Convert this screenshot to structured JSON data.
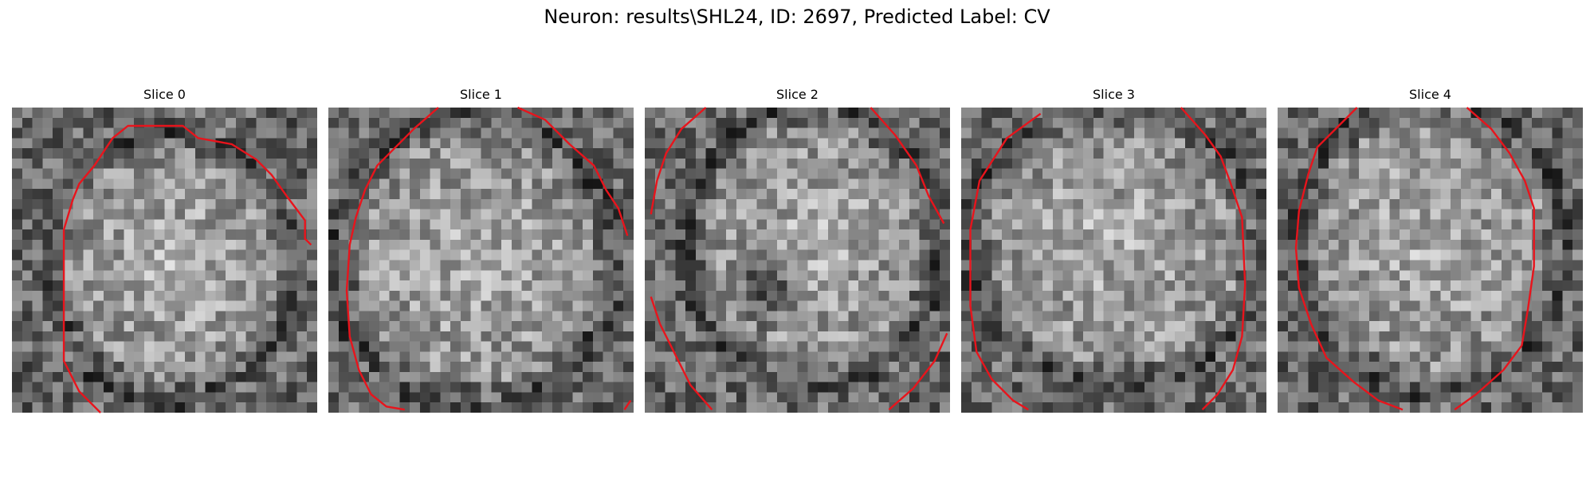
{
  "figure": {
    "title": "Neuron: results\\SHL24, ID: 2697, Predicted Label: CV"
  },
  "colors": {
    "contour": "#e8141c",
    "background": "#ffffff"
  },
  "slices": [
    {
      "title": "Slice 0",
      "contour": [
        [
          0.29,
          1.0
        ],
        [
          0.22,
          0.93
        ],
        [
          0.17,
          0.83
        ],
        [
          0.17,
          0.4
        ],
        [
          0.2,
          0.3
        ],
        [
          0.22,
          0.25
        ],
        [
          0.27,
          0.19
        ],
        [
          0.33,
          0.1
        ],
        [
          0.38,
          0.06
        ],
        [
          0.56,
          0.06
        ],
        [
          0.61,
          0.1
        ],
        [
          0.72,
          0.12
        ],
        [
          0.8,
          0.17
        ],
        [
          0.85,
          0.22
        ],
        [
          0.9,
          0.29
        ],
        [
          0.96,
          0.37
        ],
        [
          0.96,
          0.43
        ],
        [
          0.98,
          0.45
        ]
      ]
    },
    {
      "title": "Slice 1",
      "contour": [
        [
          0.36,
          0.0
        ],
        [
          0.28,
          0.07
        ],
        [
          0.22,
          0.13
        ],
        [
          0.16,
          0.19
        ],
        [
          0.12,
          0.27
        ],
        [
          0.09,
          0.36
        ],
        [
          0.07,
          0.45
        ],
        [
          0.06,
          0.6
        ],
        [
          0.07,
          0.75
        ],
        [
          0.1,
          0.86
        ],
        [
          0.14,
          0.94
        ],
        [
          0.19,
          0.98
        ],
        [
          0.25,
          0.99
        ]
      ],
      "contour2": [
        [
          0.62,
          0.0
        ],
        [
          0.71,
          0.04
        ],
        [
          0.79,
          0.12
        ],
        [
          0.87,
          0.19
        ],
        [
          0.91,
          0.27
        ],
        [
          0.95,
          0.33
        ],
        [
          0.98,
          0.42
        ]
      ],
      "contour3": [
        [
          0.97,
          0.99
        ],
        [
          0.99,
          0.96
        ]
      ]
    },
    {
      "title": "Slice 2",
      "contour": [
        [
          0.2,
          0.0
        ],
        [
          0.12,
          0.07
        ],
        [
          0.07,
          0.15
        ],
        [
          0.04,
          0.24
        ],
        [
          0.02,
          0.35
        ]
      ],
      "contour2": [
        [
          0.74,
          0.0
        ],
        [
          0.82,
          0.09
        ],
        [
          0.89,
          0.19
        ],
        [
          0.93,
          0.29
        ],
        [
          0.98,
          0.38
        ]
      ],
      "contour3": [
        [
          0.02,
          0.62
        ],
        [
          0.05,
          0.71
        ],
        [
          0.1,
          0.81
        ],
        [
          0.15,
          0.91
        ],
        [
          0.22,
          0.99
        ]
      ],
      "contour4": [
        [
          0.8,
          0.99
        ],
        [
          0.88,
          0.92
        ],
        [
          0.95,
          0.83
        ],
        [
          0.99,
          0.74
        ]
      ]
    },
    {
      "title": "Slice 3",
      "contour": [
        [
          0.26,
          0.02
        ],
        [
          0.15,
          0.1
        ],
        [
          0.06,
          0.24
        ],
        [
          0.03,
          0.4
        ],
        [
          0.03,
          0.65
        ],
        [
          0.05,
          0.8
        ],
        [
          0.1,
          0.89
        ],
        [
          0.17,
          0.96
        ],
        [
          0.22,
          0.99
        ]
      ],
      "contour2": [
        [
          0.72,
          0.0
        ],
        [
          0.8,
          0.09
        ],
        [
          0.85,
          0.16
        ],
        [
          0.88,
          0.24
        ],
        [
          0.92,
          0.36
        ],
        [
          0.93,
          0.58
        ],
        [
          0.92,
          0.75
        ],
        [
          0.89,
          0.86
        ],
        [
          0.84,
          0.94
        ],
        [
          0.79,
          0.99
        ]
      ]
    },
    {
      "title": "Slice 4",
      "contour": [
        [
          0.26,
          0.0
        ],
        [
          0.2,
          0.06
        ],
        [
          0.13,
          0.13
        ],
        [
          0.1,
          0.22
        ],
        [
          0.07,
          0.34
        ],
        [
          0.06,
          0.46
        ],
        [
          0.07,
          0.59
        ],
        [
          0.11,
          0.71
        ],
        [
          0.16,
          0.82
        ],
        [
          0.25,
          0.9
        ],
        [
          0.33,
          0.96
        ],
        [
          0.41,
          0.99
        ]
      ],
      "contour2": [
        [
          0.62,
          0.0
        ],
        [
          0.7,
          0.07
        ],
        [
          0.76,
          0.15
        ],
        [
          0.81,
          0.24
        ],
        [
          0.84,
          0.33
        ],
        [
          0.84,
          0.52
        ],
        [
          0.82,
          0.66
        ],
        [
          0.8,
          0.78
        ],
        [
          0.74,
          0.86
        ],
        [
          0.65,
          0.94
        ],
        [
          0.58,
          0.99
        ]
      ]
    }
  ]
}
